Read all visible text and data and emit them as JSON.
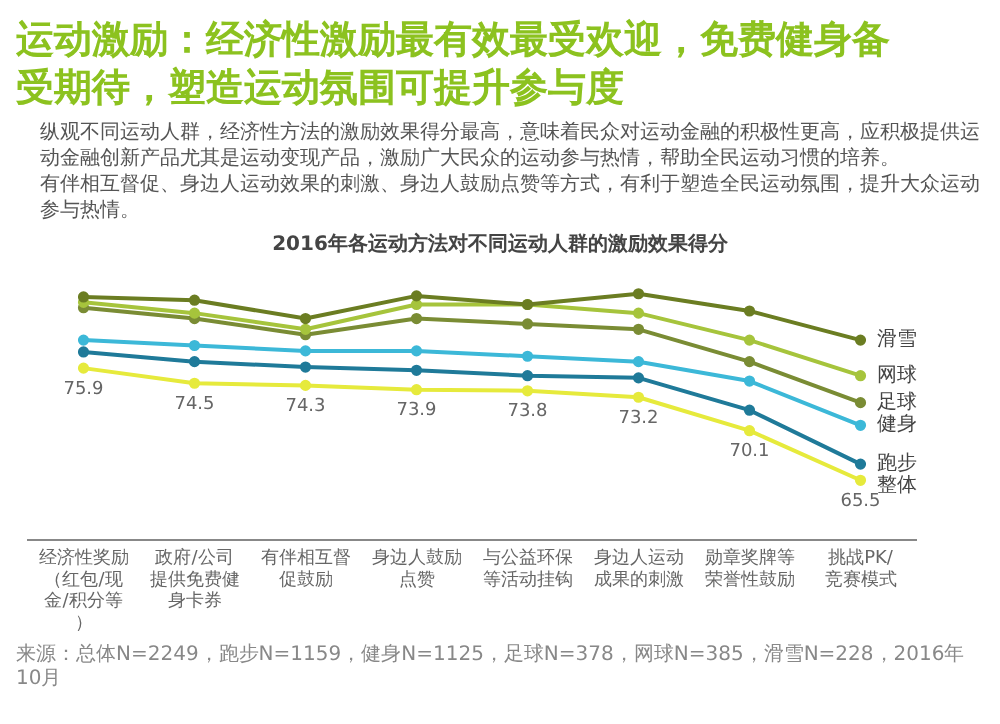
{
  "chart_data": {
    "type": "line",
    "title": "运动激励：经济性激励最有效最受欢迎，免费健身备受期待，塑造运动氛围可提升参与度",
    "subtitle": "2016年各运动方法对不同运动人群的激励效果得分",
    "annotations": [
      "纵观不同运动人群，经济性方法的激励效果得分最高，意味着民众对运动金融的积极性更高，应积极提供运动金融创新产品尤其是运动变现产品，激励广大民众的运动参与热情，帮助全民运动习惯的培养。",
      "有伴相互督促、身边人运动效果的刺激、身边人鼓励点赞等方式，有利于塑造全民运动氛围，提升大众运动参与热情。",
      "来源：总体N=2249，跑步N=1159，健身N=1125，足球N=378，网球N=385，滑雪N=228，2016年10月"
    ],
    "categories": [
      "经济性奖励（红包/现金/积分等）",
      "政府/公司提供免费健身卡券",
      "有伴相互督促鼓励",
      "身边人鼓励点赞",
      "与公益环保等活动挂钩",
      "身边人运动成果的刺激",
      "勋章奖牌等荣誉性鼓励",
      "挑战PK/竞赛模式"
    ],
    "series": [
      {
        "name": "滑雪",
        "color": "#6b7d22",
        "values": [
          82.5,
          82.2,
          80.5,
          82.6,
          81.8,
          82.8,
          81.2,
          78.5
        ]
      },
      {
        "name": "网球",
        "color": "#a6c43c",
        "values": [
          82.0,
          81.0,
          79.5,
          81.8,
          81.8,
          81.0,
          78.5,
          75.2
        ]
      },
      {
        "name": "足球",
        "color": "#7a8c34",
        "values": [
          81.5,
          80.5,
          79.0,
          80.5,
          80.0,
          79.5,
          76.5,
          72.7
        ]
      },
      {
        "name": "健身",
        "color": "#3cb8d8",
        "values": [
          78.5,
          78.0,
          77.5,
          77.5,
          77.0,
          76.5,
          74.7,
          70.6
        ]
      },
      {
        "name": "跑步",
        "color": "#1f7a99",
        "values": [
          77.4,
          76.5,
          76.0,
          75.7,
          75.2,
          75.0,
          72.0,
          67.0
        ]
      },
      {
        "name": "整体",
        "color": "#e6ea3c",
        "values": [
          75.9,
          74.5,
          74.3,
          73.9,
          73.8,
          73.2,
          70.1,
          65.5
        ],
        "value_labels": [
          "75.9",
          "74.5",
          "74.3",
          "73.9",
          "73.8",
          "73.2",
          "70.1",
          "65.5"
        ]
      }
    ],
    "tick_labels": "x",
    "grid": false,
    "marker": "circle",
    "line_style": "solid"
  }
}
